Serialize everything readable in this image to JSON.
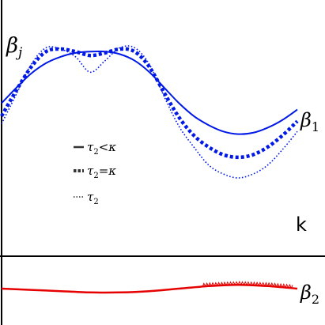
{
  "chart_data": {
    "type": "line",
    "ylabel_main": "β_j",
    "ylabel_sub": "j",
    "ylabel_base": "β",
    "xlabel": "k",
    "colors": {
      "beta1": "#0019e6",
      "beta2": "#e60000",
      "axis": "#000000",
      "legend_text": "#333333"
    },
    "series": [
      {
        "name": "β1",
        "label_base": "β",
        "label_sub": "1",
        "style": "solid",
        "x": [
          0,
          0.5,
          1,
          1.5,
          2,
          2.5,
          3,
          3.5,
          4,
          4.5,
          5,
          5.5,
          6,
          6.5,
          7,
          7.5,
          8,
          8.5,
          9,
          9.5,
          10
        ],
        "y": [
          0.58,
          0.7,
          0.81,
          0.89,
          0.94,
          0.97,
          0.98,
          0.98,
          0.96,
          0.91,
          0.82,
          0.7,
          0.58,
          0.48,
          0.41,
          0.36,
          0.34,
          0.35,
          0.39,
          0.45,
          0.53
        ]
      },
      {
        "name": "τ2=κ",
        "style": "thick-dashed",
        "x": [
          0,
          0.5,
          1,
          1.5,
          2,
          2.5,
          3,
          3.5,
          4,
          4.5,
          5,
          5.5,
          6,
          6.5,
          7,
          7.5,
          8,
          8.5,
          9,
          9.5,
          10
        ],
        "y": [
          0.48,
          0.68,
          0.86,
          0.98,
          1.0,
          0.98,
          0.95,
          0.97,
          1.0,
          0.98,
          0.86,
          0.66,
          0.47,
          0.33,
          0.24,
          0.18,
          0.16,
          0.18,
          0.24,
          0.33,
          0.44
        ]
      },
      {
        "name": "τ2",
        "style": "dotted",
        "x": [
          0,
          0.5,
          1,
          1.5,
          2,
          2.5,
          3,
          3.5,
          4,
          4.5,
          5,
          5.5,
          6,
          6.5,
          7,
          7.5,
          8,
          8.5,
          9,
          9.5,
          10
        ],
        "y": [
          0.42,
          0.65,
          0.88,
          1.01,
          1.0,
          0.94,
          0.82,
          0.91,
          1.01,
          1.01,
          0.88,
          0.63,
          0.4,
          0.24,
          0.1,
          0.03,
          0.0,
          0.03,
          0.1,
          0.22,
          0.36
        ]
      },
      {
        "name": "β2",
        "label_base": "β",
        "label_sub": "2",
        "style": "solid",
        "x": [
          0,
          1,
          2,
          3,
          4,
          5,
          6,
          7,
          8,
          9,
          10
        ],
        "y": [
          0.0,
          -0.01,
          -0.02,
          -0.03,
          -0.03,
          -0.02,
          0.0,
          0.02,
          0.03,
          0.02,
          0.0
        ]
      }
    ],
    "legend": [
      {
        "style": "solid",
        "text_base": "τ",
        "text_sub": "2",
        "text_rest": "<κ"
      },
      {
        "style": "thick-dashed",
        "text_base": "τ",
        "text_sub": "2",
        "text_rest": "=κ"
      },
      {
        "style": "dotted",
        "text_base": "τ",
        "text_sub": "2",
        "text_rest": ""
      }
    ],
    "grid": false,
    "xlim": [
      0,
      10
    ],
    "ylim_top": [
      0,
      1
    ],
    "ylim_bottom": [
      -0.1,
      0.1
    ]
  }
}
